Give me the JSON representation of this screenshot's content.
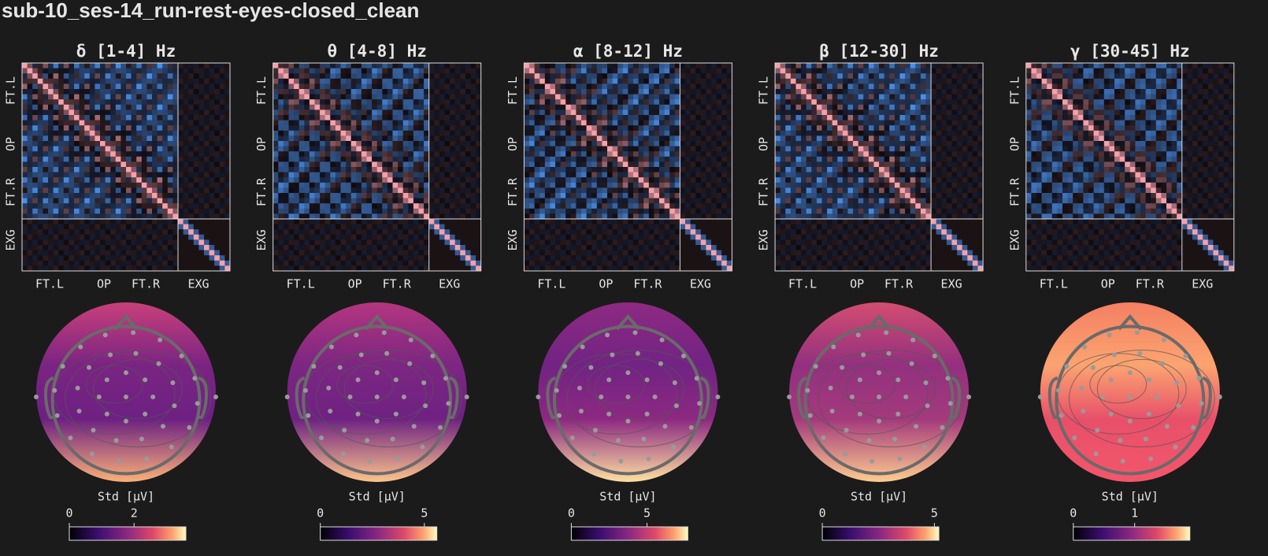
{
  "title": "sub-10_ses-14_run-rest-eyes-closed_clean",
  "panels": [
    {
      "band_title": "δ [1-4] Hz",
      "matrix_xticks": [
        "FT.L",
        "OP",
        "FT.R",
        "EXG"
      ],
      "matrix_yticks": [
        "FT.L",
        "OP",
        "FT.R",
        "EXG"
      ],
      "colorbar_label": "Std [μV]",
      "colorbar_lim": [
        0,
        3.6
      ],
      "colorbar_ticks": [
        0,
        2
      ]
    },
    {
      "band_title": "θ [4-8] Hz",
      "matrix_xticks": [
        "FT.L",
        "OP",
        "FT.R",
        "EXG"
      ],
      "matrix_yticks": [
        "FT.L",
        "OP",
        "FT.R",
        "EXG"
      ],
      "colorbar_label": "Std [μV]",
      "colorbar_lim": [
        0,
        5.6
      ],
      "colorbar_ticks": [
        0,
        5
      ]
    },
    {
      "band_title": "α [8-12] Hz",
      "matrix_xticks": [
        "FT.L",
        "OP",
        "FT.R",
        "EXG"
      ],
      "matrix_yticks": [
        "FT.L",
        "OP",
        "FT.R",
        "EXG"
      ],
      "colorbar_label": "Std [μV]",
      "colorbar_lim": [
        0,
        7.7
      ],
      "colorbar_ticks": [
        0,
        5
      ]
    },
    {
      "band_title": "β [12-30] Hz",
      "matrix_xticks": [
        "FT.L",
        "OP",
        "FT.R",
        "EXG"
      ],
      "matrix_yticks": [
        "FT.L",
        "OP",
        "FT.R",
        "EXG"
      ],
      "colorbar_label": "Std [μV]",
      "colorbar_lim": [
        0,
        5.2
      ],
      "colorbar_ticks": [
        0,
        5
      ]
    },
    {
      "band_title": "γ [30-45] Hz",
      "matrix_xticks": [
        "FT.L",
        "OP",
        "FT.R",
        "EXG"
      ],
      "matrix_yticks": [
        "FT.L",
        "OP",
        "FT.R",
        "EXG"
      ],
      "colorbar_label": "Std [μV]",
      "colorbar_lim": [
        0,
        1.9
      ],
      "colorbar_ticks": [
        0,
        1
      ]
    }
  ]
}
